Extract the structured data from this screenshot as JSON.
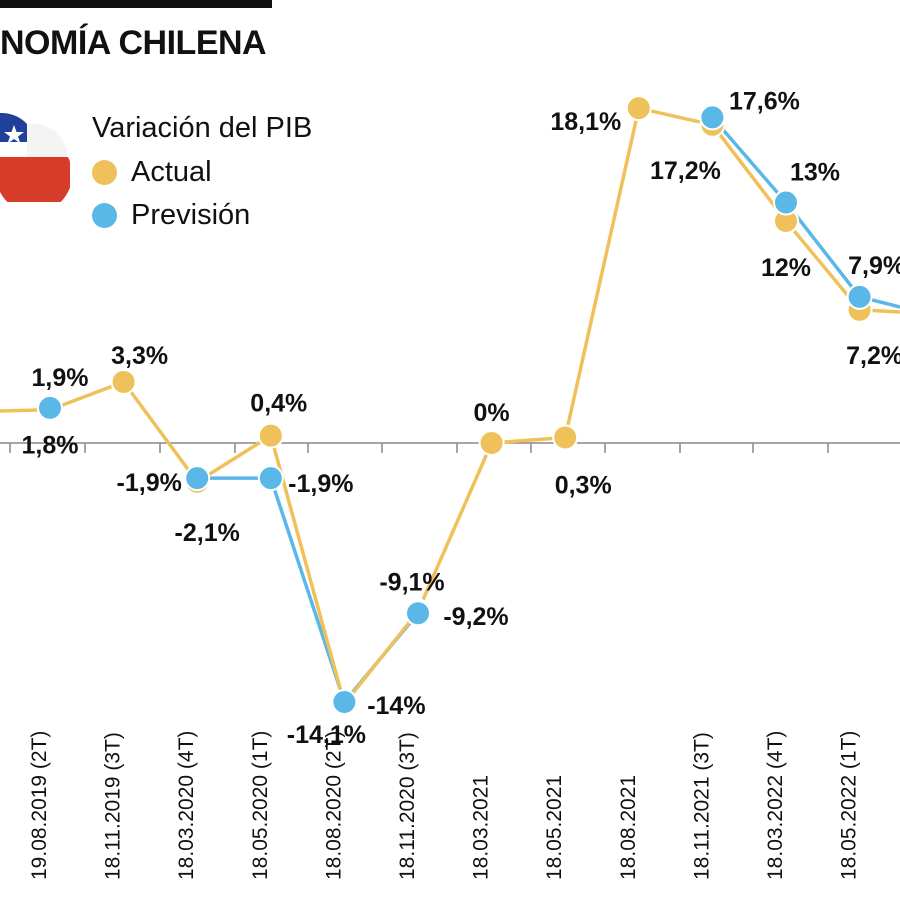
{
  "header": {
    "title": "NOMÍA CHILENA"
  },
  "legend": {
    "title": "Variación del PIB",
    "items": [
      {
        "key": "actual",
        "label": "Actual",
        "color": "#efc15a"
      },
      {
        "key": "prevision",
        "label": "Previsión",
        "color": "#5ab8e8"
      }
    ]
  },
  "chart_data": {
    "type": "line",
    "categories": [
      "19.08.2019 (2T)",
      "18.11.2019 (3T)",
      "18.03.2020 (4T)",
      "18.05.2020 (1T)",
      "18.08.2020 (2T)",
      "18.11.2020 (3T)",
      "18.03.2021",
      "18.05.2021",
      "18.08.2021",
      "18.11.2021 (3T)",
      "18.03.2022 (4T)",
      "18.05.2022 (1T)"
    ],
    "series": [
      {
        "name": "Actual",
        "color": "#efc15a",
        "values": [
          1.8,
          3.3,
          -2.1,
          0.4,
          -14.1,
          -9.1,
          0.0,
          0.3,
          18.1,
          17.2,
          12.0,
          7.2
        ],
        "labels": [
          "1,8%",
          "3,3%",
          "-2,1%",
          "0,4%",
          "-14,1%",
          "-9,1%",
          "0%",
          "0,3%",
          "18,1%",
          "17,2%",
          "12%",
          "7,2%"
        ]
      },
      {
        "name": "Previsión",
        "color": "#5ab8e8",
        "values": [
          1.9,
          null,
          -1.9,
          -1.9,
          -14.0,
          -9.2,
          null,
          null,
          null,
          17.6,
          13.0,
          7.9
        ],
        "labels": [
          "1,9%",
          "",
          "-1,9%",
          "-1,9%",
          "-14%",
          "-9,2%",
          "",
          "",
          "",
          "17,6%",
          "13%",
          "7,9%"
        ]
      }
    ],
    "ylim": [
      -15,
      19
    ],
    "grid": false,
    "legend_position": "top-left"
  }
}
